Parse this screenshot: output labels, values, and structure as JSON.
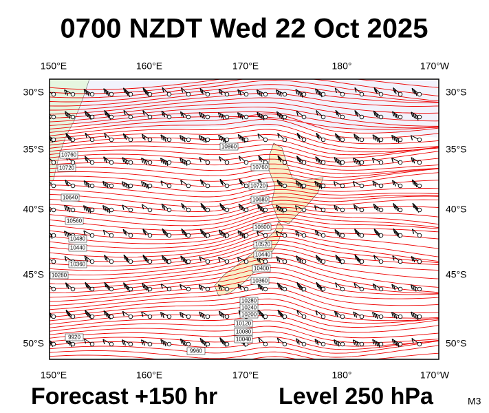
{
  "header": {
    "title": "0700 NZDT Wed 22 Oct 2025"
  },
  "axes": {
    "longitudes": [
      "150°E",
      "160°E",
      "170°E",
      "180°",
      "170°W"
    ],
    "latitudes": [
      "30°S",
      "35°S",
      "40°S",
      "45°S",
      "50°S"
    ]
  },
  "contour_labels": [
    "10860",
    "10760",
    "10720",
    "10640",
    "10560",
    "10480",
    "10440",
    "10360",
    "10280",
    "10760",
    "10720",
    "10680",
    "10600",
    "10520",
    "10440",
    "10400",
    "10360",
    "10280",
    "10240",
    "10200",
    "10120",
    "10080",
    "10040",
    "9920",
    "9960"
  ],
  "footer": {
    "forecast": "Forecast +150 hr",
    "level": "Level 250 hPa",
    "model": "M3"
  }
}
